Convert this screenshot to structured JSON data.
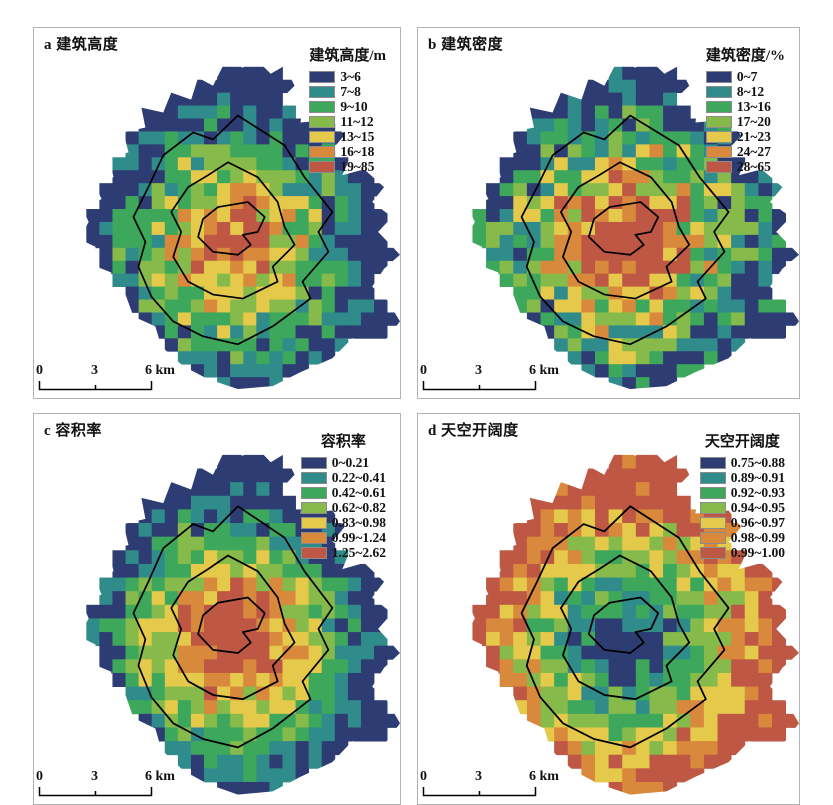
{
  "figure": {
    "scalebar": {
      "zero": "0",
      "mid": "3",
      "end": "6 km"
    }
  },
  "colors": {
    "panel_border": "#b3b3b3",
    "swatch_border": "#8c8c8c",
    "contour": "#000000",
    "text": "#111111",
    "background": "#ffffff"
  },
  "chart_data": {
    "type": "heatmap",
    "note": "2x2 grid of gridded (raster cell) choropleth maps of the same city footprint, each with 3 concentric ring-road contour lines and a 0-3-6 km scale bar",
    "palette": [
      "#2D3D73",
      "#2F8C8B",
      "#3DA75B",
      "#86BB4B",
      "#E5C94B",
      "#D8893C",
      "#BE5743"
    ],
    "scalebar_km": [
      0,
      3,
      6
    ],
    "contour_rings": 3,
    "panels": [
      {
        "id": "a",
        "title": "a 建筑高度",
        "legend_title": "建筑高度/m",
        "classes": [
          "3~6",
          "7~8",
          "9~10",
          "11~12",
          "13~15",
          "16~18",
          "19~85"
        ],
        "spatial_pattern": "values increase toward city center",
        "render": {
          "dir": 1,
          "gain": 7.2,
          "bias": -0.3,
          "noise": 3.2,
          "seed": 101
        }
      },
      {
        "id": "b",
        "title": "b 建筑密度",
        "legend_title": "建筑密度/%",
        "classes": [
          "0~7",
          "8~12",
          "13~16",
          "17~20",
          "21~23",
          "24~27",
          "28~65"
        ],
        "spatial_pattern": "values increase toward city center",
        "render": {
          "dir": 1,
          "gain": 7.8,
          "bias": 0.1,
          "noise": 4.2,
          "seed": 202
        }
      },
      {
        "id": "c",
        "title": "c 容积率",
        "legend_title": "容积率",
        "classes": [
          "0~0.21",
          "0.22~0.41",
          "0.42~0.61",
          "0.62~0.82",
          "0.83~0.98",
          "0.99~1.24",
          "1.25~2.62"
        ],
        "spatial_pattern": "values increase toward city center",
        "render": {
          "dir": 1,
          "gain": 8.6,
          "bias": -0.4,
          "noise": 2.6,
          "seed": 303
        }
      },
      {
        "id": "d",
        "title": "d 天空开阔度",
        "legend_title": "天空开阔度",
        "classes": [
          "0.75~0.88",
          "0.89~0.91",
          "0.92~0.93",
          "0.94~0.95",
          "0.96~0.97",
          "0.98~0.99",
          "0.99~1.00"
        ],
        "spatial_pattern": "values decrease toward city center",
        "render": {
          "dir": -1,
          "gain": 7.6,
          "bias": -0.4,
          "noise": 3.0,
          "seed": 404
        }
      }
    ]
  }
}
